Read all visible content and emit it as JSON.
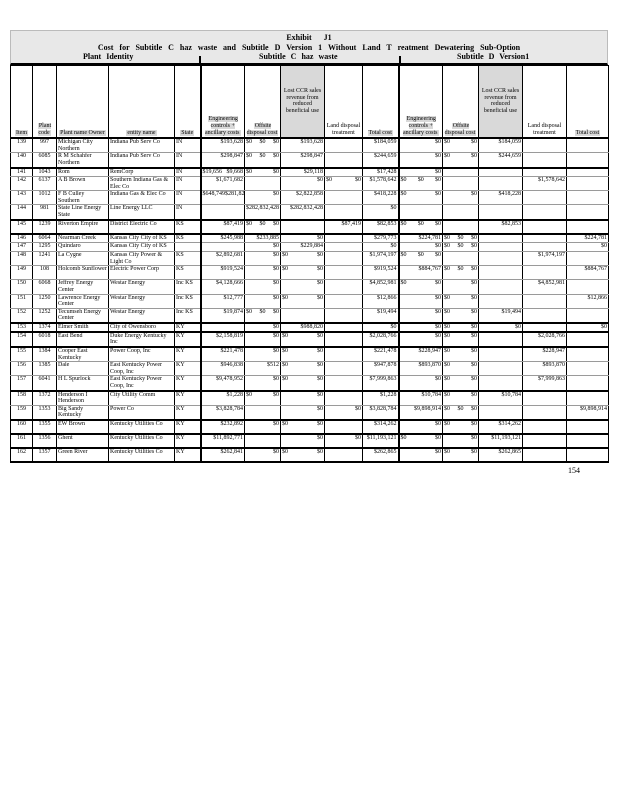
{
  "page": {
    "number": "154"
  },
  "header": {
    "exhibit_line": "Exhibit J1",
    "title_line": "Cost for Subtitle C haz waste and Subtitle D Version 1 Without Land T reatment Dewatering Sub-Option",
    "sections": {
      "left": "Plant Identity",
      "center": "Subtitle C haz waste",
      "right": "Subtitle D Version1"
    }
  },
  "table": {
    "columns": [
      {
        "label": "Item"
      },
      {
        "label": "Plant code"
      },
      {
        "label": "Plant name Owner"
      },
      {
        "label": "entity name"
      },
      {
        "label": "State"
      },
      {
        "label": "Engineering controls + ancillary costs"
      },
      {
        "label": "Offsite disposal cost"
      },
      {
        "label": "Lost CCR sales revenue from reduced beneficial use"
      },
      {
        "label": "Land disposal treatment"
      },
      {
        "label": "Total cost"
      },
      {
        "label": "Engineering controls + ancillary costs"
      },
      {
        "label": "Offsite disposal cost"
      },
      {
        "label": "Lost CCR sales revenue from reduced beneficial use"
      },
      {
        "label": "Land disposal treatment"
      },
      {
        "label": "Total cost"
      }
    ],
    "rows": [
      {
        "tall": true,
        "thick": false,
        "cells": [
          "139",
          "997",
          "Michigan City Northern",
          "Indiana Pub Serv Co",
          "IN",
          "$193,628",
          "$0  $0  $0",
          "$193,628",
          "",
          "$184,059",
          "$0",
          "$0  $0",
          "$184,059",
          "",
          ""
        ]
      },
      {
        "tall": true,
        "thick": true,
        "cells": [
          "140",
          "6085",
          "R M Schahfer Northern",
          "Indiana Pub Serv Co",
          "IN",
          "$298,847",
          "$0  $0  $0",
          "$298,847",
          "",
          "$244,659",
          "$0",
          "$0  $0",
          "$244,659",
          "",
          ""
        ]
      },
      {
        "tall": false,
        "thick": false,
        "cells": [
          "141",
          "1043",
          "Rom",
          "RemCorp",
          "IN",
          "$19,656  $9,668",
          "$0  $0",
          "$29,118",
          "",
          "$17,428",
          "$0",
          "",
          "",
          "",
          ""
        ]
      },
      {
        "tall": true,
        "thick": false,
        "cells": [
          "142",
          "6137",
          "A B Brown",
          "Southern Indiana Gas & Elec Co",
          "IN",
          "$1,671,682",
          "",
          "$0",
          "$0  $0",
          "$1,578,642",
          "$0  $0  $0",
          "",
          "",
          "$1,578,642",
          ""
        ]
      },
      {
        "tall": true,
        "thick": false,
        "cells": [
          "143",
          "1012",
          "F B Culley Southern",
          "Indiana Gas & Elec Co",
          "IN",
          "$648,749  $281,828",
          "$0",
          "$2,822,858",
          "",
          "$418,228",
          "$0  $0",
          "$0",
          "$418,228",
          "",
          ""
        ]
      },
      {
        "tall": true,
        "thick": true,
        "cells": [
          "144",
          "981",
          "State Line Energy State",
          "Line Energy LLC",
          "IN",
          "",
          "$282,832,428",
          "$282,832,428",
          "",
          "$0",
          "",
          "",
          "",
          "",
          ""
        ]
      },
      {
        "tall": true,
        "thick": true,
        "cells": [
          "145",
          "1239",
          "Riverton Empire",
          "District Electric Co",
          "KS",
          "$87,419",
          "$0  $0  $0",
          "",
          "$87,419",
          "$82,853",
          "$0  $0  $0",
          "",
          "$82,853",
          "",
          ""
        ]
      },
      {
        "tall": false,
        "thick": false,
        "cells": [
          "146",
          "6064",
          "Nearman Creek",
          "Kansas City City of KS",
          "KS",
          "$245,988",
          "$233,885",
          "$0",
          "",
          "$279,773",
          "$224,781",
          "$0  $0  $0",
          "",
          "",
          "$224,781"
        ]
      },
      {
        "tall": false,
        "thick": false,
        "cells": [
          "147",
          "1295",
          "Quindaro",
          "Kansas City City of KS",
          "",
          "",
          "$0",
          "$229,884",
          "",
          "$0",
          "$0",
          "$0  $0  $0",
          "",
          "",
          "$0"
        ]
      },
      {
        "tall": true,
        "thick": false,
        "cells": [
          "148",
          "1241",
          "La Cygne",
          "Kansas City Power & Light Co",
          "KS",
          "$2,892,681",
          "$0",
          "$0  $0",
          "",
          "$1,974,197",
          "$0  $0  $0",
          "",
          "",
          "$1,974,197",
          ""
        ]
      },
      {
        "tall": true,
        "thick": false,
        "cells": [
          "149",
          "108",
          "Holcomb Sunflower",
          "Electric Power Corp",
          "KS",
          "$919,524",
          "$0",
          "$0  $0",
          "",
          "$919,524",
          "$884,767",
          "$0  $0  $0",
          "",
          "",
          "$884,767"
        ]
      },
      {
        "tall": true,
        "thick": false,
        "cells": [
          "150",
          "6068",
          "Jeffrey Energy Center",
          "Westar Energy",
          "Inc KS",
          "$4,128,666",
          "$0",
          "$0",
          "",
          "$4,852,981",
          "$0  $0",
          "$0",
          "",
          "$4,852,981",
          ""
        ]
      },
      {
        "tall": true,
        "thick": false,
        "cells": [
          "151",
          "1250",
          "Lawrence Energy Center",
          "Westar Energy",
          "Inc KS",
          "$12,777",
          "$0",
          "$0  $0",
          "",
          "$12,866",
          "$0",
          "$0  $0",
          "",
          "",
          "$12,866"
        ]
      },
      {
        "tall": true,
        "thick": true,
        "cells": [
          "152",
          "1252",
          "Tecumseh Energy Center",
          "Westar Energy",
          "Inc KS",
          "$19,874",
          "$0  $0  $0",
          "",
          "",
          "$19,494",
          "$0",
          "$0  $0",
          "$19,494",
          "",
          ""
        ]
      },
      {
        "tall": false,
        "thick": true,
        "cells": [
          "153",
          "1374",
          "Elmer Smith",
          "City of Owensboro",
          "KY",
          "",
          "$0",
          "$988,820",
          "",
          "$0",
          "$0",
          "$0  $0",
          "$0",
          "",
          "$0"
        ]
      },
      {
        "tall": true,
        "thick": true,
        "cells": [
          "154",
          "6018",
          "East Bend",
          "Duke Energy Kentucky Inc",
          "KY",
          "$2,158,819",
          "$0",
          "$0  $0",
          "",
          "$2,028,766",
          "$0",
          "$0  $0",
          "",
          "$2,028,766",
          ""
        ]
      },
      {
        "tall": true,
        "thick": false,
        "cells": [
          "155",
          "1384",
          "Cooper East Kentucky",
          "Power Coop, Inc",
          "KY",
          "$221,478",
          "$0",
          "$0  $0",
          "",
          "$221,478",
          "$228,947",
          "$0  $0",
          "",
          "$228,947",
          ""
        ]
      },
      {
        "tall": true,
        "thick": false,
        "cells": [
          "156",
          "1385",
          "Dale",
          "East Kentucky Power Coop, Inc",
          "KY",
          "$946,838",
          "$512",
          "$0  $0",
          "",
          "$947,878",
          "$893,870",
          "$0  $0",
          "",
          "$893,870",
          ""
        ]
      },
      {
        "tall": true,
        "thick": true,
        "cells": [
          "157",
          "6041",
          "H L Spurlock",
          "East Kentucky Power Coop, Inc",
          "KY",
          "$9,478,952",
          "$0",
          "$0  $0",
          "",
          "$7,999,863",
          "$0",
          "$0  $0",
          "",
          "$7,999,863",
          ""
        ]
      },
      {
        "tall": true,
        "thick": false,
        "cells": [
          "158",
          "1372",
          "Henderson I Henderson",
          "City Utility Comm",
          "KY",
          "$1,228",
          "$0  $0",
          "$0",
          "",
          "$1,228",
          "$10,784",
          "$0  $0",
          "$10,784",
          "",
          ""
        ]
      },
      {
        "tall": false,
        "thick": true,
        "cells": [
          "159",
          "1353",
          "Big Sandy Kentucky",
          "Power Co",
          "KY",
          "$3,828,784",
          "",
          "$0",
          "$0",
          "$3,828,784",
          "$9,898,914",
          "$0  $0  $0",
          "",
          "",
          "$9,898,914"
        ]
      },
      {
        "tall": true,
        "thick": true,
        "cells": [
          "160",
          "1355",
          "EW Brown",
          "Kentucky Utilities Co",
          "KY",
          "$232,892",
          "$0",
          "$0  $0",
          "",
          "$314,262",
          "$0",
          "$0  $0",
          "$314,262",
          "",
          ""
        ]
      },
      {
        "tall": true,
        "thick": true,
        "cells": [
          "161",
          "1356",
          "Ghent",
          "Kentucky Utilities Co",
          "KY",
          "$11,892,771",
          "",
          "$0",
          "$0",
          "$11,193,121",
          "$0  $0",
          "$0",
          "$11,193,121",
          "",
          ""
        ]
      },
      {
        "tall": true,
        "thick": true,
        "cells": [
          "162",
          "1357",
          "Green River",
          "Kentucky Utilities Co",
          "KY",
          "$262,841",
          "$0",
          "$0  $0",
          "",
          "$262,865",
          "$0",
          "$0  $0",
          "$262,865",
          "",
          ""
        ]
      }
    ]
  }
}
